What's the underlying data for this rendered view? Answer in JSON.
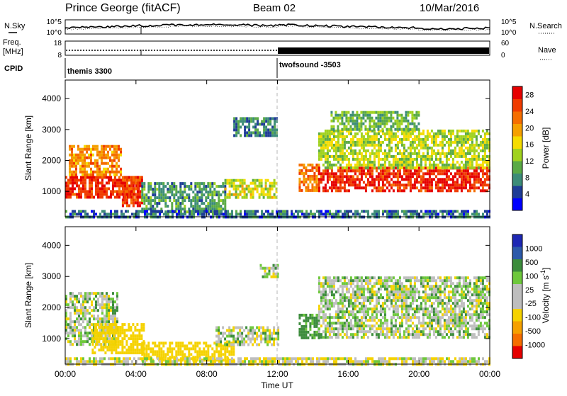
{
  "header": {
    "station": "Prince George (fitACF)",
    "beam": "Beam 02",
    "date": "10/Mar/2016"
  },
  "left_labels": {
    "nsky": "N.Sky",
    "freq": "Freq.",
    "freq_unit": "[MHz]",
    "cpid": "CPID"
  },
  "right_labels": {
    "nsearch": "N.Search",
    "nave": "Nave"
  },
  "noise_axis": {
    "left_ticks": [
      "10^5",
      "10^0"
    ],
    "right_ticks": [
      "10^5",
      "10^0"
    ]
  },
  "freq_axis": {
    "left_ticks": [
      "18",
      "8"
    ],
    "right_ticks": [
      "60",
      "0"
    ]
  },
  "cpid": {
    "segments": [
      "themis 3300",
      "twofsound -3503"
    ],
    "switch_time": "12:00"
  },
  "colors": {
    "power_scale": [
      "#0000ff",
      "#1e3c96",
      "#3c8c78",
      "#5aaa46",
      "#a0d21e",
      "#f5dc00",
      "#f5a000",
      "#f56e00",
      "#f03c00",
      "#e60000"
    ],
    "velocity_scale": [
      "#1e28b4",
      "#2d5aaa",
      "#3c8c3c",
      "#6ec83c",
      "#bebebe",
      "#bebebe",
      "#f5d200",
      "#f5a000",
      "#f56e00",
      "#e60000"
    ],
    "noise_trace": "#000000"
  },
  "chart_data": [
    {
      "type": "heatmap",
      "title": "",
      "xlabel": "",
      "ylabel": "Slant Range [km]",
      "xlim": [
        "00:00",
        "24:00"
      ],
      "ylim": [
        180,
        4600
      ],
      "x_ticks": [
        "00:00",
        "04:00",
        "08:00",
        "12:00",
        "16:00",
        "20:00",
        "00:00"
      ],
      "y_ticks": [
        1000,
        2000,
        3000,
        4000
      ],
      "colorbar": {
        "label": "Power [dB]",
        "ticks": [
          4,
          8,
          12,
          16,
          20,
          24,
          28
        ],
        "range": [
          0,
          30
        ]
      },
      "regions": [
        {
          "t": [
            0.0,
            4.3
          ],
          "range": [
            800,
            1500
          ],
          "value": 27
        },
        {
          "t": [
            0.2,
            3.2
          ],
          "range": [
            1500,
            2500
          ],
          "value": 21
        },
        {
          "t": [
            3.2,
            4.4
          ],
          "range": [
            500,
            1500
          ],
          "value": 25
        },
        {
          "t": [
            4.3,
            9.0
          ],
          "range": [
            300,
            1300
          ],
          "value": 9
        },
        {
          "t": [
            9.0,
            12.0
          ],
          "range": [
            800,
            1400
          ],
          "value": 15
        },
        {
          "t": [
            9.5,
            12.0
          ],
          "range": [
            2800,
            3400
          ],
          "value": 8
        },
        {
          "t": [
            13.2,
            14.3
          ],
          "range": [
            1000,
            1900
          ],
          "value": 22
        },
        {
          "t": [
            14.3,
            24.0
          ],
          "range": [
            1000,
            1800
          ],
          "value": 27
        },
        {
          "t": [
            14.3,
            24.0
          ],
          "range": [
            1800,
            3000
          ],
          "value": 14
        },
        {
          "t": [
            15.0,
            20.0
          ],
          "range": [
            3000,
            3600
          ],
          "value": 11
        },
        {
          "t": [
            0.0,
            24.0
          ],
          "range": [
            180,
            400
          ],
          "value": 6
        }
      ]
    },
    {
      "type": "heatmap",
      "title": "",
      "xlabel": "Time UT",
      "ylabel": "Slant Range [km]",
      "xlim": [
        "00:00",
        "24:00"
      ],
      "ylim": [
        180,
        4600
      ],
      "x_ticks": [
        "00:00",
        "04:00",
        "08:00",
        "12:00",
        "16:00",
        "20:00",
        "00:00"
      ],
      "y_ticks": [
        1000,
        2000,
        3000,
        4000
      ],
      "colorbar": {
        "label": "Velocity [m s^-1]",
        "ticks": [
          1000,
          500,
          100,
          25,
          -25,
          -100,
          -500,
          -1000
        ]
      },
      "regions": [
        {
          "t": [
            0.0,
            3.0
          ],
          "range": [
            800,
            2500
          ],
          "value": 0
        },
        {
          "t": [
            1.5,
            4.4
          ],
          "range": [
            500,
            1500
          ],
          "value": -250
        },
        {
          "t": [
            4.3,
            9.5
          ],
          "range": [
            300,
            900
          ],
          "value": -300
        },
        {
          "t": [
            8.5,
            12.0
          ],
          "range": [
            800,
            1400
          ],
          "value": 0
        },
        {
          "t": [
            11.0,
            12.0
          ],
          "range": [
            3000,
            3400
          ],
          "value": 0
        },
        {
          "t": [
            13.2,
            14.3
          ],
          "range": [
            1000,
            1800
          ],
          "value": 200
        },
        {
          "t": [
            14.3,
            24.0
          ],
          "range": [
            1000,
            3000
          ],
          "value": 0
        },
        {
          "t": [
            0.0,
            24.0
          ],
          "range": [
            180,
            400
          ],
          "value": -80
        }
      ]
    }
  ]
}
